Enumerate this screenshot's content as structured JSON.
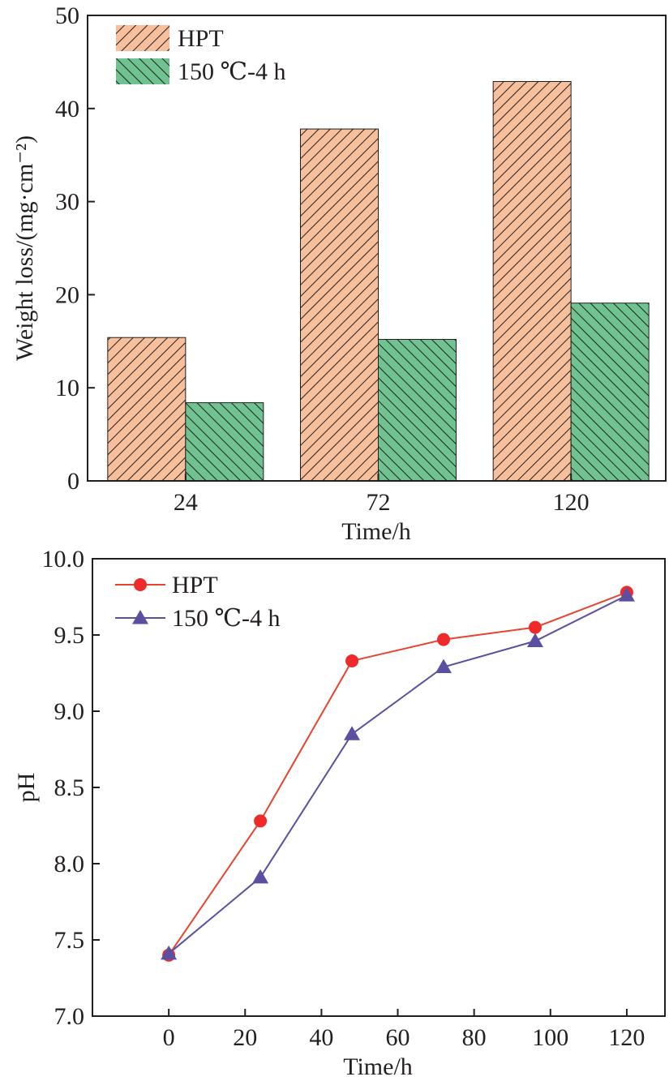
{
  "colors": {
    "hpt_bar_fill": "#f7bf9c",
    "heat_bar_fill": "#6fc390",
    "hpt_line": "#e8432f",
    "hpt_marker": "#ee2a2a",
    "heat_line": "#5a4fa0",
    "axis": "#231f20"
  },
  "chart_data": [
    {
      "type": "bar",
      "categories": [
        "24",
        "72",
        "120"
      ],
      "series": [
        {
          "name": "HPT",
          "values": [
            15.4,
            37.8,
            42.9
          ],
          "pattern": "diagonal-hatch-right"
        },
        {
          "name": "150 ℃-4 h",
          "values": [
            8.4,
            15.2,
            19.1
          ],
          "pattern": "diagonal-hatch-left"
        }
      ],
      "xlabel": "Time/h",
      "ylabel": "Weight loss/(mg·cm⁻²)",
      "ylim": [
        0,
        50
      ],
      "yticks": [
        0,
        10,
        20,
        30,
        40,
        50
      ],
      "legend_placement": "top-left",
      "grid": false
    },
    {
      "type": "line",
      "x": [
        0,
        24,
        48,
        72,
        96,
        120
      ],
      "series": [
        {
          "name": "HPT",
          "values": [
            7.4,
            8.28,
            9.33,
            9.47,
            9.55,
            9.78
          ],
          "marker": "circle"
        },
        {
          "name": "150 ℃-4 h",
          "values": [
            7.41,
            7.91,
            8.85,
            9.29,
            9.46,
            9.76
          ],
          "marker": "triangle"
        }
      ],
      "xlabel": "Time/h",
      "ylabel": "pH",
      "xlim": [
        -20,
        130
      ],
      "ylim": [
        7.0,
        10.0
      ],
      "xticks": [
        0,
        20,
        40,
        60,
        80,
        100,
        120
      ],
      "yticks": [
        7.0,
        7.5,
        8.0,
        8.5,
        9.0,
        9.5,
        10.0
      ],
      "ytick_labels": [
        "7.0",
        "7.5",
        "8.0",
        "8.5",
        "9.0",
        "9.5",
        "10.0"
      ],
      "legend_placement": "top-left",
      "grid": false
    }
  ]
}
